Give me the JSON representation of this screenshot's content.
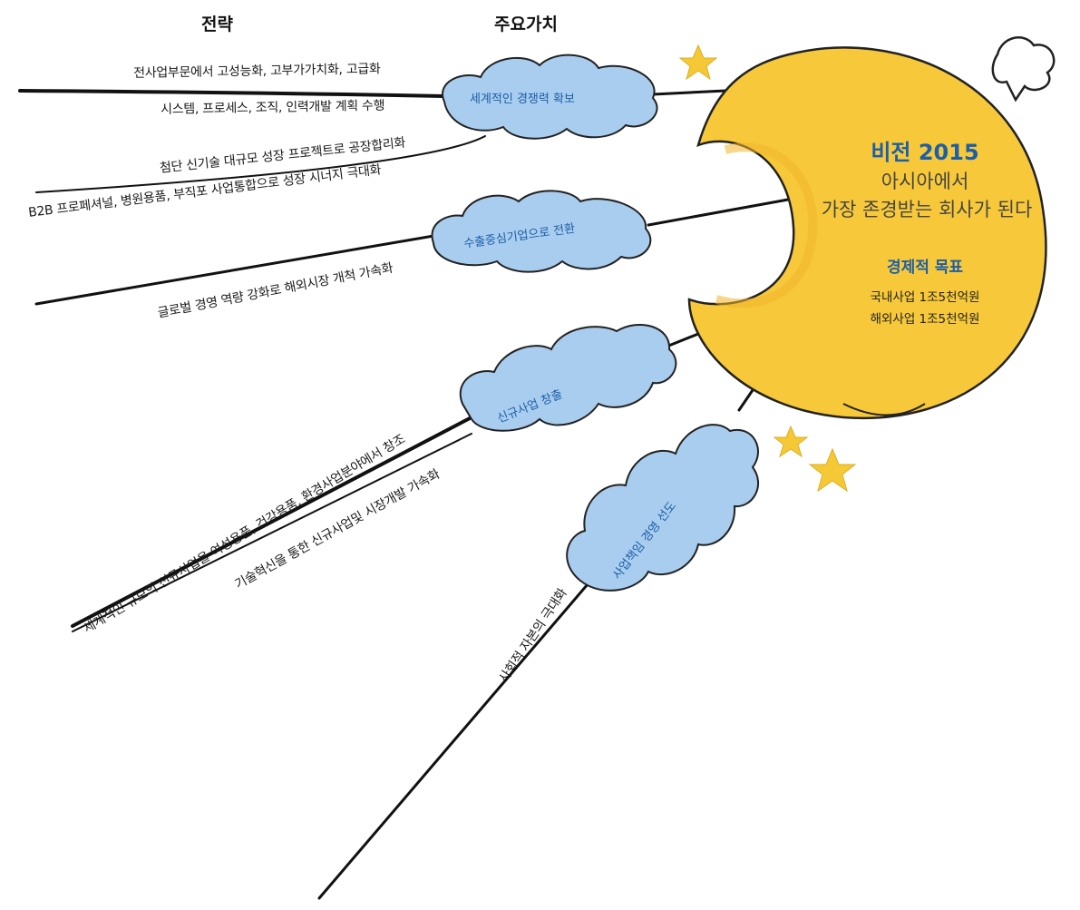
{
  "headers": {
    "strategy": "전략",
    "values": "주요가치"
  },
  "vision": {
    "title": "비전 2015",
    "line1": "아시아에서",
    "line2": "가장 존경받는 회사가 된다"
  },
  "economic_goal": {
    "title": "경제적 목표",
    "items": [
      "국내사업 1조5천억원",
      "해외사업 1조5천억원"
    ]
  },
  "core_values": [
    "세계적인 경쟁력 확보",
    "수출중심기업으로 전환",
    "신규사업 창출",
    "사업책임 경영 선도"
  ],
  "strategies": [
    "전사업부문에서 고성능화, 고부가가치화, 고급화",
    "시스템, 프로세스, 조직, 인력개발 계획 수행",
    "첨단 신기술 대규모 성장 프로젝트로 공장합리화",
    "B2B 프로페셔널, 병원용품, 부직포 사업통합으로 성장 시너지 극대화",
    "글로벌 경영 역량 강화로 해외시장 개척 가속화",
    "세계적인 규모의 신규사업을 여성용품, 건강용품, 환경사업분야에서 창조",
    "기술혁신을 통한 신규사업및 시장개발 가속화",
    "사회적 자본의 극대화"
  ],
  "colors": {
    "moon": "#f7c93a",
    "moon_shade": "#f0b52a",
    "cloud": "#a9cdee",
    "accent_blue": "#1c5ea8",
    "star": "#f5c836"
  }
}
